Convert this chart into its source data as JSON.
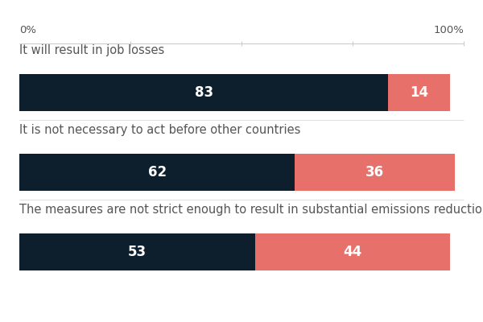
{
  "categories": [
    "It will result in job losses",
    "It is not necessary to act before other countries",
    "The measures are not strict enough to result in substantial emissions reductions"
  ],
  "dark_values": [
    83,
    62,
    53
  ],
  "light_values": [
    14,
    36,
    44
  ],
  "dark_color": "#0d1f2d",
  "light_color": "#e8706a",
  "bg_color": "#ffffff",
  "text_color_bar": "#ffffff",
  "text_color_label": "#555555",
  "axis_line_color": "#cccccc",
  "separator_color": "#dddddd",
  "label_0pct": "0%",
  "label_100pct": "100%",
  "label_fontsize": 10.5,
  "bar_label_fontsize": 12,
  "axis_label_fontsize": 9.5
}
